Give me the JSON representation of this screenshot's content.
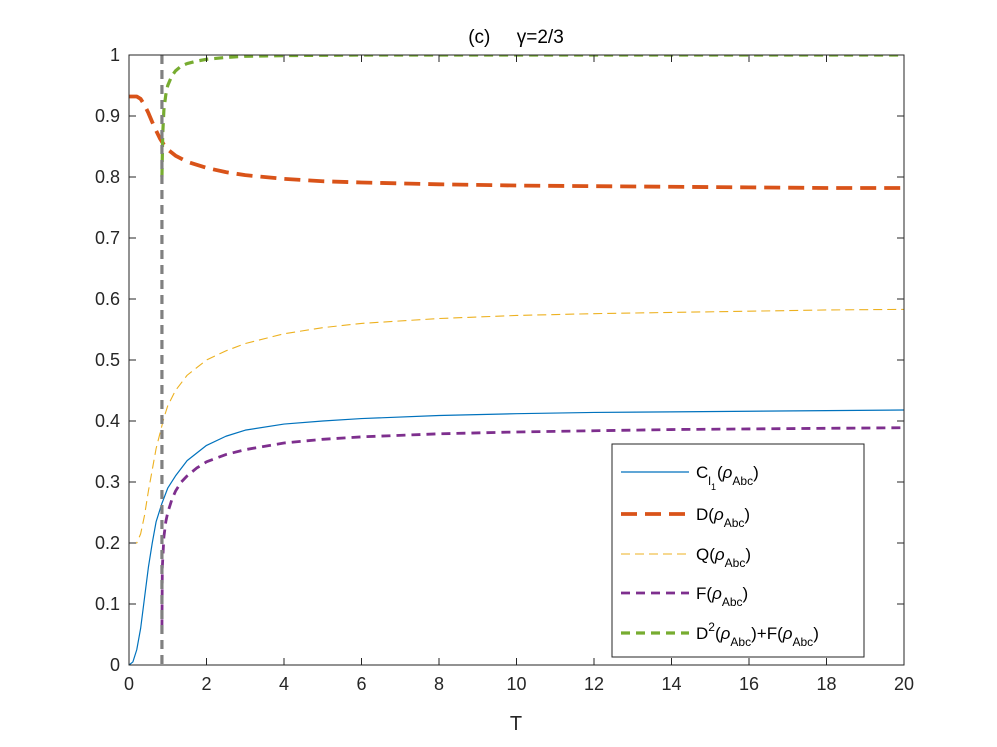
{
  "chart_data": {
    "type": "line",
    "title": "(c)     γ=2/3",
    "xlabel": "T",
    "ylabel": "",
    "xlim": [
      0,
      20
    ],
    "ylim": [
      0,
      1
    ],
    "xticks": [
      0,
      2,
      4,
      6,
      8,
      10,
      12,
      14,
      16,
      18,
      20
    ],
    "yticks": [
      0,
      0.1,
      0.2,
      0.3,
      0.4,
      0.5,
      0.6,
      0.7,
      0.8,
      0.9,
      1
    ],
    "grid": false,
    "legend_position": "bottom-right",
    "vline": {
      "x": 0.85,
      "color": "#808080",
      "style": "dashed"
    },
    "series": [
      {
        "key": "C",
        "legend": {
          "base": "C",
          "sub1": "l",
          "sub2": "1",
          "paren_open": "(",
          "rho": "ρ",
          "rho_sub": "Abc",
          "paren_close": ")"
        },
        "color": "#0072BD",
        "style": "solid",
        "width": 1.2,
        "x": [
          0,
          0.1,
          0.2,
          0.3,
          0.4,
          0.5,
          0.6,
          0.7,
          0.8,
          0.85,
          1.0,
          1.2,
          1.5,
          2,
          2.5,
          3,
          4,
          5,
          6,
          8,
          10,
          12,
          14,
          16,
          18,
          20
        ],
        "y": [
          0,
          0.005,
          0.025,
          0.06,
          0.11,
          0.16,
          0.2,
          0.235,
          0.255,
          0.265,
          0.29,
          0.31,
          0.335,
          0.36,
          0.375,
          0.385,
          0.395,
          0.4,
          0.404,
          0.409,
          0.412,
          0.414,
          0.415,
          0.416,
          0.417,
          0.418
        ]
      },
      {
        "key": "D",
        "legend": {
          "base": "D",
          "paren_open": "(",
          "rho": "ρ",
          "rho_sub": "Abc",
          "paren_close": ")"
        },
        "color": "#D95319",
        "style": "dashed-thick",
        "width": 3.8,
        "x": [
          0,
          0.2,
          0.3,
          0.4,
          0.5,
          0.6,
          0.7,
          0.8,
          0.9,
          1.0,
          1.2,
          1.5,
          2,
          2.5,
          3,
          4,
          5,
          6,
          8,
          10,
          12,
          14,
          16,
          18,
          20
        ],
        "y": [
          0.932,
          0.932,
          0.928,
          0.918,
          0.905,
          0.89,
          0.876,
          0.863,
          0.853,
          0.845,
          0.835,
          0.825,
          0.815,
          0.808,
          0.803,
          0.797,
          0.793,
          0.791,
          0.788,
          0.786,
          0.785,
          0.784,
          0.783,
          0.782,
          0.782
        ]
      },
      {
        "key": "Q",
        "legend": {
          "base": "Q",
          "paren_open": "(",
          "rho": "ρ",
          "rho_sub": "Abc",
          "paren_close": ")"
        },
        "color": "#EDB120",
        "style": "dashed-thin",
        "width": 1.1,
        "x": [
          0,
          0.2,
          0.3,
          0.4,
          0.5,
          0.6,
          0.7,
          0.8,
          0.9,
          1.0,
          1.2,
          1.5,
          2,
          2.5,
          3,
          4,
          5,
          6,
          8,
          10,
          12,
          14,
          16,
          18,
          20
        ],
        "y": [
          0.2,
          0.2,
          0.215,
          0.245,
          0.285,
          0.32,
          0.355,
          0.38,
          0.405,
          0.425,
          0.45,
          0.475,
          0.5,
          0.515,
          0.527,
          0.543,
          0.553,
          0.56,
          0.568,
          0.573,
          0.576,
          0.578,
          0.58,
          0.582,
          0.583
        ]
      },
      {
        "key": "F",
        "legend": {
          "base": "F",
          "paren_open": "(",
          "rho": "ρ",
          "rho_sub": "Abc",
          "paren_close": ")"
        },
        "color": "#7E2F8E",
        "style": "dashed",
        "width": 2.8,
        "x": [
          0.85,
          0.86,
          0.9,
          0.95,
          1.0,
          1.1,
          1.2,
          1.35,
          1.5,
          1.75,
          2,
          2.5,
          3,
          4,
          5,
          6,
          8,
          10,
          12,
          14,
          16,
          18,
          20
        ],
        "y": [
          0.06,
          0.16,
          0.21,
          0.235,
          0.25,
          0.27,
          0.285,
          0.3,
          0.31,
          0.323,
          0.333,
          0.345,
          0.353,
          0.364,
          0.37,
          0.374,
          0.379,
          0.382,
          0.384,
          0.386,
          0.387,
          0.388,
          0.389
        ]
      },
      {
        "key": "S",
        "legend": {
          "base": "D",
          "sup": "2",
          "paren_open": "(",
          "rho": "ρ",
          "rho_sub": "Abc",
          "paren_close": ")",
          "plus": "+",
          "base2": "F",
          "paren_open2": "(",
          "rho2": "ρ",
          "rho_sub2": "Abc",
          "paren_close2": ")"
        },
        "color": "#77AC30",
        "style": "dashed",
        "width": 3.2,
        "x": [
          0.85,
          0.87,
          0.9,
          0.95,
          1.0,
          1.1,
          1.2,
          1.35,
          1.5,
          1.75,
          2,
          2.5,
          3,
          4,
          6,
          8,
          10,
          20
        ],
        "y": [
          0.8,
          0.87,
          0.91,
          0.935,
          0.95,
          0.965,
          0.974,
          0.982,
          0.986,
          0.99,
          0.993,
          0.996,
          0.998,
          0.999,
          1.0,
          1.0,
          1.0,
          1.0
        ]
      }
    ]
  }
}
